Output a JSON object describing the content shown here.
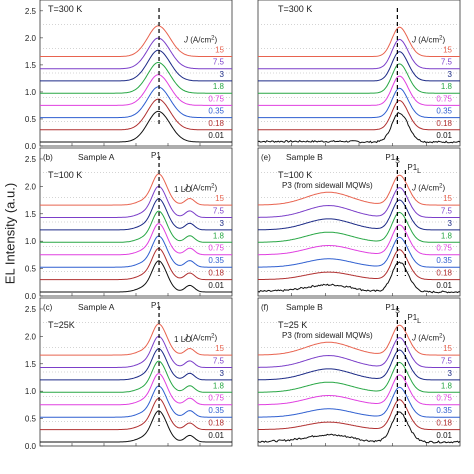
{
  "figure": {
    "ylabel": "EL Intensity (a.u.)",
    "legend_title_html": "J (A/cm²)"
  },
  "chart_data": [
    {
      "type": "line",
      "panel": "a",
      "panel_label": "",
      "sample": "",
      "temperature": "T=300 K",
      "ylim": [
        0,
        2.7
      ],
      "yticks": [
        "0.0",
        "0.5",
        "1.0",
        "1.5",
        "2.0",
        "2.5"
      ],
      "legend_title": "J (A/cm²)",
      "series": [
        {
          "name": "15",
          "color": "#e8634f"
        },
        {
          "name": "7.5",
          "color": "#7b3fc9"
        },
        {
          "name": "3",
          "color": "#1c2a86"
        },
        {
          "name": "1.8",
          "color": "#28a745"
        },
        {
          "name": "0.75",
          "color": "#e040e0"
        },
        {
          "name": "0.35",
          "color": "#2f5fd0"
        },
        {
          "name": "0.18",
          "color": "#b03030"
        },
        {
          "name": "0.01",
          "color": "#111111"
        }
      ],
      "peaks": [
        "",
        ""
      ],
      "extra_label": ""
    },
    {
      "type": "line",
      "panel": "d",
      "panel_label": "",
      "sample": "",
      "temperature": "T=300 K",
      "legend_title": "J (A/cm²)",
      "series": [
        {
          "name": "15",
          "color": "#e8634f"
        },
        {
          "name": "7.5",
          "color": "#7b3fc9"
        },
        {
          "name": "3",
          "color": "#1c2a86"
        },
        {
          "name": "1.8",
          "color": "#28a745"
        },
        {
          "name": "0.75",
          "color": "#e040e0"
        },
        {
          "name": "0.35",
          "color": "#2f5fd0"
        },
        {
          "name": "0.18",
          "color": "#b03030"
        },
        {
          "name": "0.01",
          "color": "#111111"
        }
      ],
      "peaks": [
        "",
        ""
      ],
      "extra_label": ""
    },
    {
      "type": "line",
      "panel": "b",
      "panel_label": "(b)",
      "sample": "Sample A",
      "temperature": "T=100 K",
      "ylim": [
        0,
        2.7
      ],
      "yticks": [
        "0.0",
        "0.5",
        "1.0",
        "1.5",
        "2.0",
        "2.5"
      ],
      "legend_title": "J (A/cm²)",
      "series": [
        {
          "name": "15",
          "color": "#e8634f"
        },
        {
          "name": "7.5",
          "color": "#7b3fc9"
        },
        {
          "name": "3",
          "color": "#1c2a86"
        },
        {
          "name": "1.8",
          "color": "#28a745"
        },
        {
          "name": "0.75",
          "color": "#e040e0"
        },
        {
          "name": "0.35",
          "color": "#2f5fd0"
        },
        {
          "name": "0.18",
          "color": "#b03030"
        },
        {
          "name": "0.01",
          "color": "#111111"
        }
      ],
      "peaks": [
        "P1",
        ""
      ],
      "extra_label": "1 LO"
    },
    {
      "type": "line",
      "panel": "e",
      "panel_label": "(e)",
      "sample": "Sample B",
      "temperature": "T=100 K",
      "legend_title": "J (A/cm²)",
      "series": [
        {
          "name": "15",
          "color": "#e8634f"
        },
        {
          "name": "7.5",
          "color": "#7b3fc9"
        },
        {
          "name": "3",
          "color": "#1c2a86"
        },
        {
          "name": "1.8",
          "color": "#28a745"
        },
        {
          "name": "0.75",
          "color": "#e040e0"
        },
        {
          "name": "0.35",
          "color": "#2f5fd0"
        },
        {
          "name": "0.18",
          "color": "#b03030"
        },
        {
          "name": "0.01",
          "color": "#111111"
        }
      ],
      "peaks": [
        "P1S",
        "P1L"
      ],
      "extra_label": "P3 (from sidewall MQWs)"
    },
    {
      "type": "line",
      "panel": "c",
      "panel_label": "(c)",
      "sample": "Sample A",
      "temperature": "T=25K",
      "ylim": [
        0,
        2.7
      ],
      "yticks": [
        "0.0",
        "0.5",
        "1.0",
        "1.5",
        "2.0",
        "2.5"
      ],
      "legend_title": "J (A/cm²)",
      "series": [
        {
          "name": "15",
          "color": "#e8634f"
        },
        {
          "name": "7.5",
          "color": "#7b3fc9"
        },
        {
          "name": "3",
          "color": "#1c2a86"
        },
        {
          "name": "1.8",
          "color": "#28a745"
        },
        {
          "name": "0.75",
          "color": "#e040e0"
        },
        {
          "name": "0.35",
          "color": "#2f5fd0"
        },
        {
          "name": "0.18",
          "color": "#b03030"
        },
        {
          "name": "0.01",
          "color": "#111111"
        }
      ],
      "peaks": [
        "P1",
        ""
      ],
      "extra_label": "1 LO"
    },
    {
      "type": "line",
      "panel": "f",
      "panel_label": "(f)",
      "sample": "Sample B",
      "temperature": "T=25 K",
      "legend_title": "J (A/cm²)",
      "series": [
        {
          "name": "15",
          "color": "#e8634f"
        },
        {
          "name": "7.5",
          "color": "#7b3fc9"
        },
        {
          "name": "3",
          "color": "#1c2a86"
        },
        {
          "name": "1.8",
          "color": "#28a745"
        },
        {
          "name": "0.75",
          "color": "#e040e0"
        },
        {
          "name": "0.35",
          "color": "#2f5fd0"
        },
        {
          "name": "0.18",
          "color": "#b03030"
        },
        {
          "name": "0.01",
          "color": "#111111"
        }
      ],
      "peaks": [
        "P1S",
        "P1L"
      ],
      "extra_label": "P3 (from sidewall MQWs)"
    }
  ]
}
